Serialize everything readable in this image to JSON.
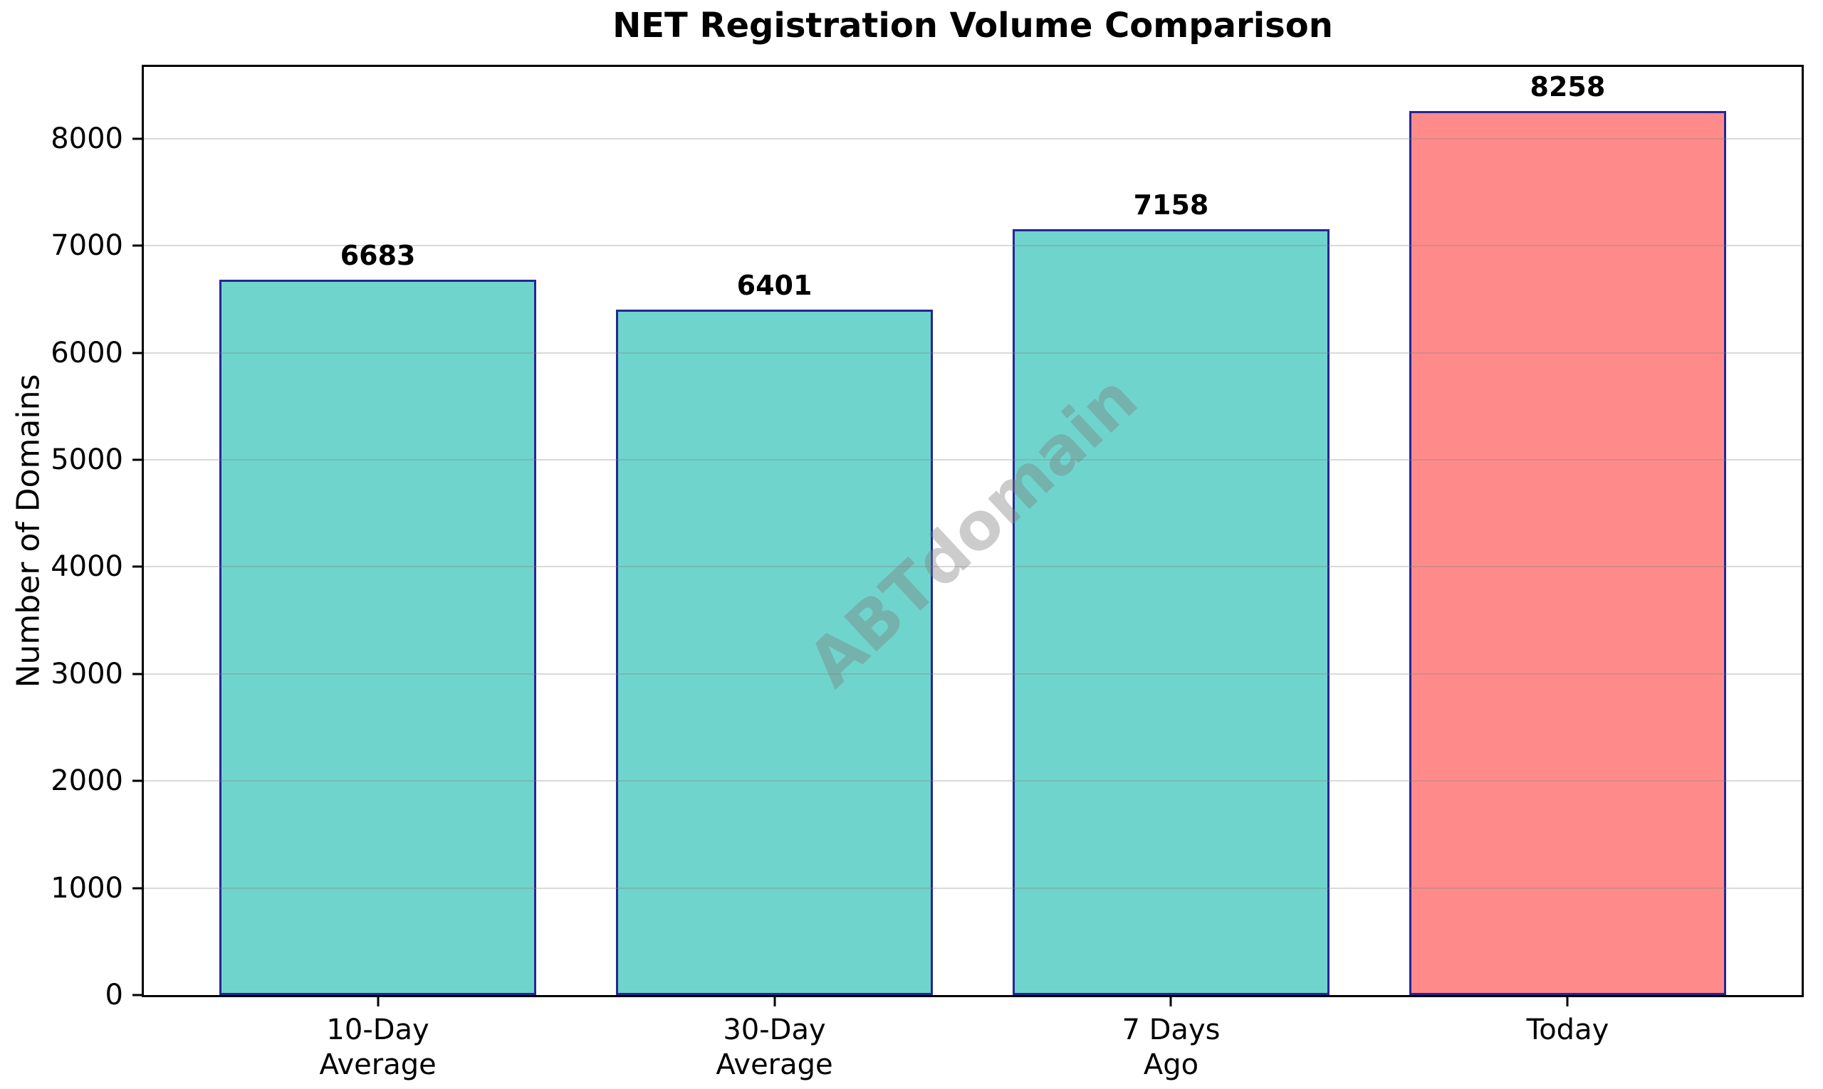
{
  "chart_data": {
    "type": "bar",
    "title": "NET Registration Volume Comparison",
    "ylabel": "Number of Domains",
    "xlabel": "",
    "categories": [
      "10-Day\nAverage",
      "30-Day\nAverage",
      "7 Days\nAgo",
      "Today"
    ],
    "values": [
      6683,
      6401,
      7158,
      8258
    ],
    "bar_colors": [
      "#6fd4cc",
      "#6fd4cc",
      "#6fd4cc",
      "#ff8a8a"
    ],
    "bar_edge_color": "#262693",
    "ylim": [
      0,
      8671
    ],
    "yticks": [
      0,
      1000,
      2000,
      3000,
      4000,
      5000,
      6000,
      7000,
      8000
    ],
    "grid": "horizontal",
    "grid_color": "rgba(128,128,128,0.30)",
    "watermark": "ABTdomain",
    "watermark_color": "rgba(128,128,128,0.40)",
    "background": "#ffffff",
    "legend": "none"
  }
}
